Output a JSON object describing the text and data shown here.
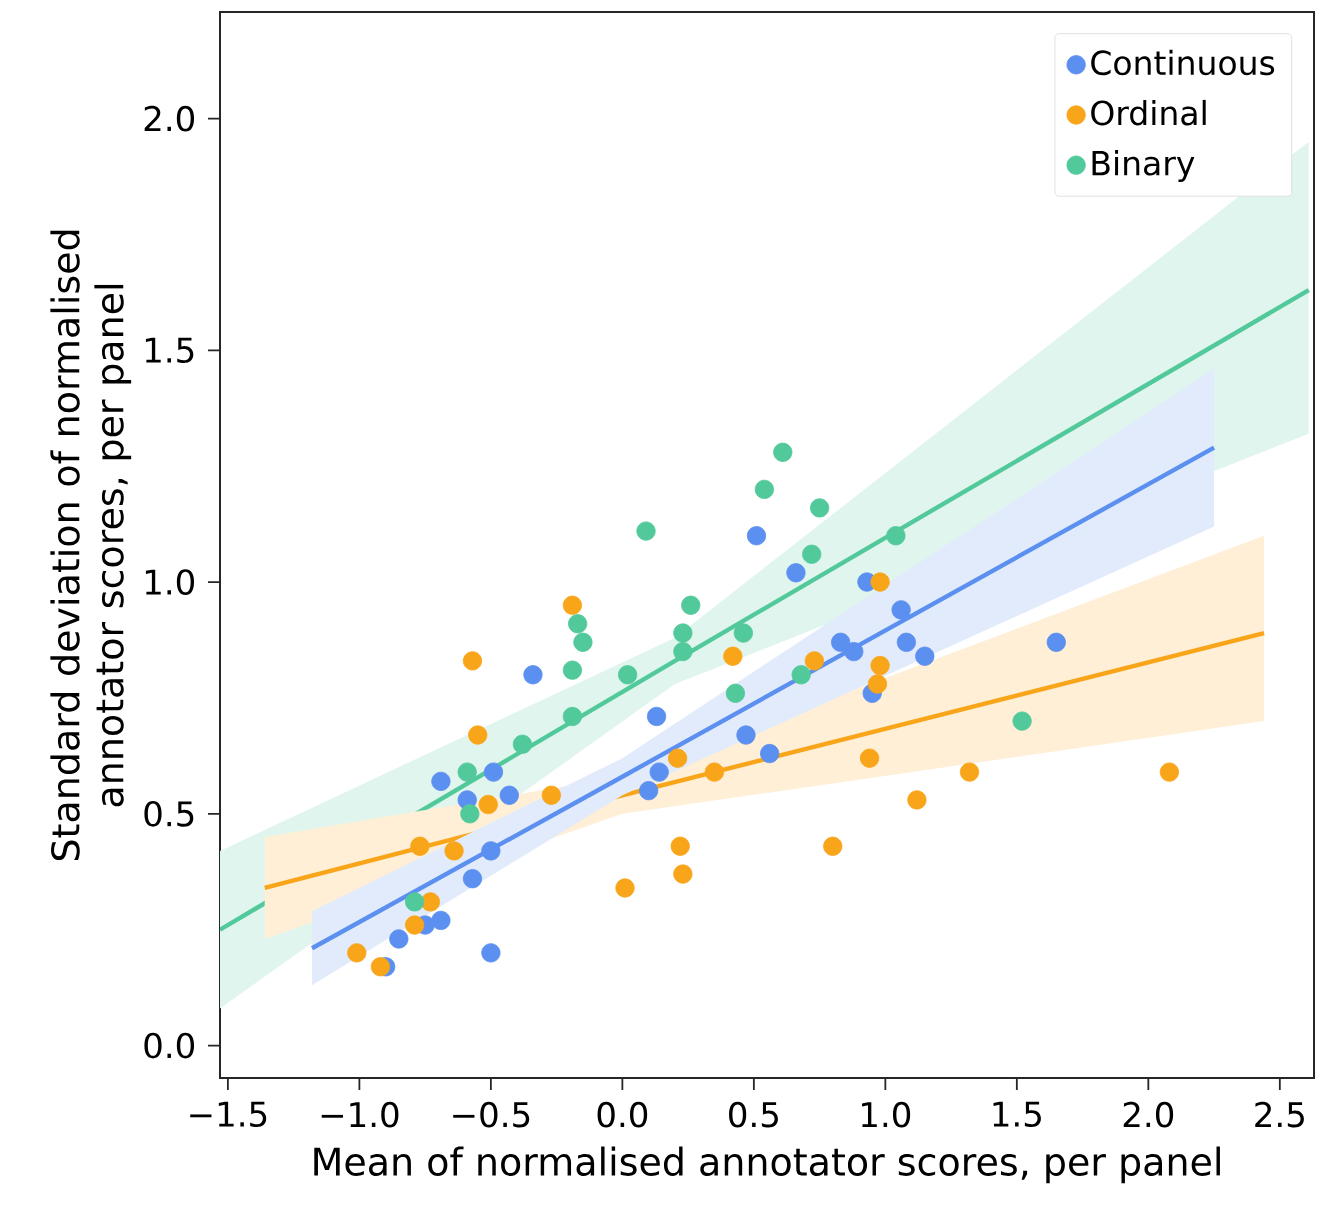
{
  "chart_data": {
    "type": "scatter",
    "xlabel": "Mean of normalised annotator scores, per panel",
    "ylabel": "Standard deviation of normalised annotator scores, per panel",
    "xlim": [
      -1.53,
      2.63
    ],
    "ylim": [
      -0.07,
      2.23
    ],
    "xticks": [
      {
        "value": -1.5,
        "label": "−1.5"
      },
      {
        "value": -1.0,
        "label": "−1.0"
      },
      {
        "value": -0.5,
        "label": "−0.5"
      },
      {
        "value": 0.0,
        "label": "0.0"
      },
      {
        "value": 0.5,
        "label": "0.5"
      },
      {
        "value": 1.0,
        "label": "1.0"
      },
      {
        "value": 1.5,
        "label": "1.5"
      },
      {
        "value": 2.0,
        "label": "2.0"
      },
      {
        "value": 2.5,
        "label": "2.5"
      }
    ],
    "yticks": [
      {
        "value": 0.0,
        "label": "0.0"
      },
      {
        "value": 0.5,
        "label": "0.5"
      },
      {
        "value": 1.0,
        "label": "1.0"
      },
      {
        "value": 1.5,
        "label": "1.5"
      },
      {
        "value": 2.0,
        "label": "2.0"
      }
    ],
    "legend": "top right",
    "series": [
      {
        "type": "line",
        "marker": "none",
        "color": "#52c99b",
        "x": [
          -1.53,
          0.2,
          2.61
        ],
        "values": [
          0.25,
          0.83,
          1.63
        ],
        "lower": [
          0.08,
          0.78,
          1.32
        ],
        "upper": [
          0.42,
          0.88,
          1.95
        ]
      },
      {
        "type": "line",
        "marker": "none",
        "color": "#f9a51a",
        "x": [
          -1.36,
          0.0,
          2.44
        ],
        "values": [
          0.34,
          0.54,
          0.89
        ],
        "lower": [
          0.23,
          0.5,
          0.7
        ],
        "upper": [
          0.45,
          0.58,
          1.1
        ]
      },
      {
        "type": "line",
        "marker": "none",
        "color": "#5b8ff0",
        "x": [
          -1.18,
          0.0,
          2.25
        ],
        "values": [
          0.21,
          0.58,
          1.29
        ],
        "lower": [
          0.13,
          0.54,
          1.12
        ],
        "upper": [
          0.29,
          0.62,
          1.46
        ]
      },
      {
        "name": "Continuous",
        "marker": "circle",
        "color": "#5b8ff0",
        "x": [
          -0.34,
          0.51,
          0.66,
          0.93,
          1.06,
          1.08,
          1.15,
          0.83,
          0.88,
          0.95,
          1.65,
          0.13,
          0.47,
          0.56,
          0.1,
          0.14,
          -0.69,
          -0.49,
          -0.43,
          -0.5,
          -0.57,
          -0.69,
          -0.75,
          -0.85,
          -0.9,
          -0.5,
          -0.59
        ],
        "values": [
          0.8,
          1.1,
          1.02,
          1.0,
          0.94,
          0.87,
          0.84,
          0.87,
          0.85,
          0.76,
          0.87,
          0.71,
          0.67,
          0.63,
          0.55,
          0.59,
          0.57,
          0.59,
          0.54,
          0.42,
          0.36,
          0.27,
          0.26,
          0.23,
          0.17,
          0.2,
          0.53
        ]
      },
      {
        "name": "Ordinal",
        "marker": "circle",
        "color": "#f9a51a",
        "x": [
          -0.19,
          -0.57,
          -0.55,
          -0.27,
          -0.51,
          -0.77,
          -0.64,
          -0.79,
          -1.01,
          -0.92,
          0.01,
          0.22,
          0.23,
          0.21,
          0.35,
          0.42,
          0.73,
          0.98,
          0.98,
          0.97,
          0.94,
          0.8,
          1.12,
          1.32,
          2.08,
          -0.73
        ],
        "values": [
          0.95,
          0.83,
          0.67,
          0.54,
          0.52,
          0.43,
          0.42,
          0.26,
          0.2,
          0.17,
          0.34,
          0.43,
          0.37,
          0.62,
          0.59,
          0.84,
          0.83,
          1.0,
          0.82,
          0.78,
          0.62,
          0.43,
          0.53,
          0.59,
          0.59,
          0.31
        ]
      },
      {
        "name": "Binary",
        "marker": "circle",
        "color": "#52c99b",
        "x": [
          0.61,
          0.54,
          0.75,
          0.09,
          0.72,
          1.04,
          0.26,
          0.23,
          0.23,
          0.46,
          -0.17,
          -0.15,
          -0.19,
          -0.19,
          0.02,
          0.43,
          0.68,
          -0.38,
          -0.59,
          -0.58,
          -0.79,
          1.52
        ],
        "values": [
          1.28,
          1.2,
          1.16,
          1.11,
          1.06,
          1.1,
          0.95,
          0.89,
          0.85,
          0.89,
          0.91,
          0.87,
          0.81,
          0.71,
          0.8,
          0.76,
          0.8,
          0.65,
          0.59,
          0.5,
          0.31,
          0.7
        ]
      }
    ]
  }
}
